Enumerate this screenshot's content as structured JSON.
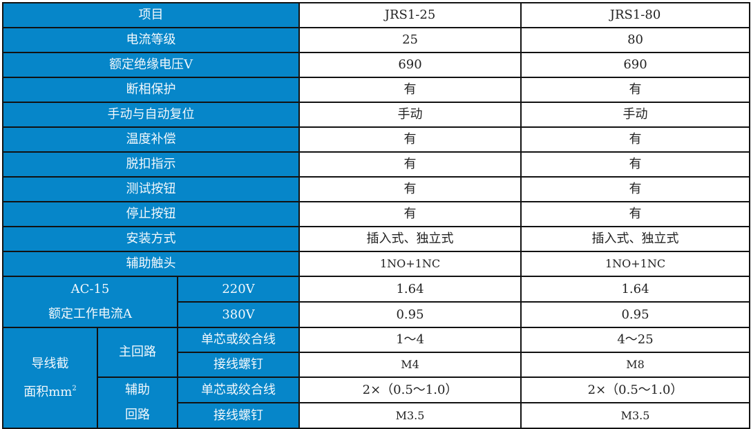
{
  "header": {
    "label": "项目",
    "c1": "JRS1-25",
    "c2": "JRS1-80"
  },
  "rows": [
    {
      "label": "电流等级",
      "v1": "25",
      "v2": "80"
    },
    {
      "label": "额定绝缘电压V",
      "v1": "690",
      "v2": "690"
    },
    {
      "label": "断相保护",
      "v1": "有",
      "v2": "有"
    },
    {
      "label": "手动与自动复位",
      "v1": "手动",
      "v2": "手动"
    },
    {
      "label": "温度补偿",
      "v1": "有",
      "v2": "有"
    },
    {
      "label": "脱扣指示",
      "v1": "有",
      "v2": "有"
    },
    {
      "label": "测试按钮",
      "v1": "有",
      "v2": "有"
    },
    {
      "label": "停止按钮",
      "v1": "有",
      "v2": "有"
    },
    {
      "label": "安装方式",
      "v1": "插入式、独立式",
      "v2": "插入式、独立式"
    },
    {
      "label": "辅助触头",
      "v1": "1NO+1NC",
      "v2": "1NO+1NC"
    }
  ],
  "ac15": {
    "line1": "AC-15",
    "line2": "额定工作电流A",
    "rows": [
      {
        "voltage": "220V",
        "v1": "1.64",
        "v2": "1.64"
      },
      {
        "voltage": "380V",
        "v1": "0.95",
        "v2": "0.95"
      }
    ]
  },
  "wire": {
    "line1": "导线截",
    "line2": "面积mm",
    "sup": "2",
    "main": {
      "label": "主回路",
      "rows": [
        {
          "label": "单芯或绞合线",
          "v1": "1～4",
          "v2": "4～25"
        },
        {
          "label": "接线螺钉",
          "v1": "M4",
          "v2": "M8"
        }
      ]
    },
    "aux": {
      "line1": "辅助",
      "line2": "回路",
      "rows": [
        {
          "label": "单芯或绞合线",
          "v1": "2×（0.5～1.0）",
          "v2": "2×（0.5～1.0）"
        },
        {
          "label": "接线螺钉",
          "v1": "M3.5",
          "v2": "M3.5"
        }
      ]
    }
  },
  "colors": {
    "header_bg": "#0686c9",
    "header_text": "#f2f8fc",
    "border": "#111111"
  }
}
